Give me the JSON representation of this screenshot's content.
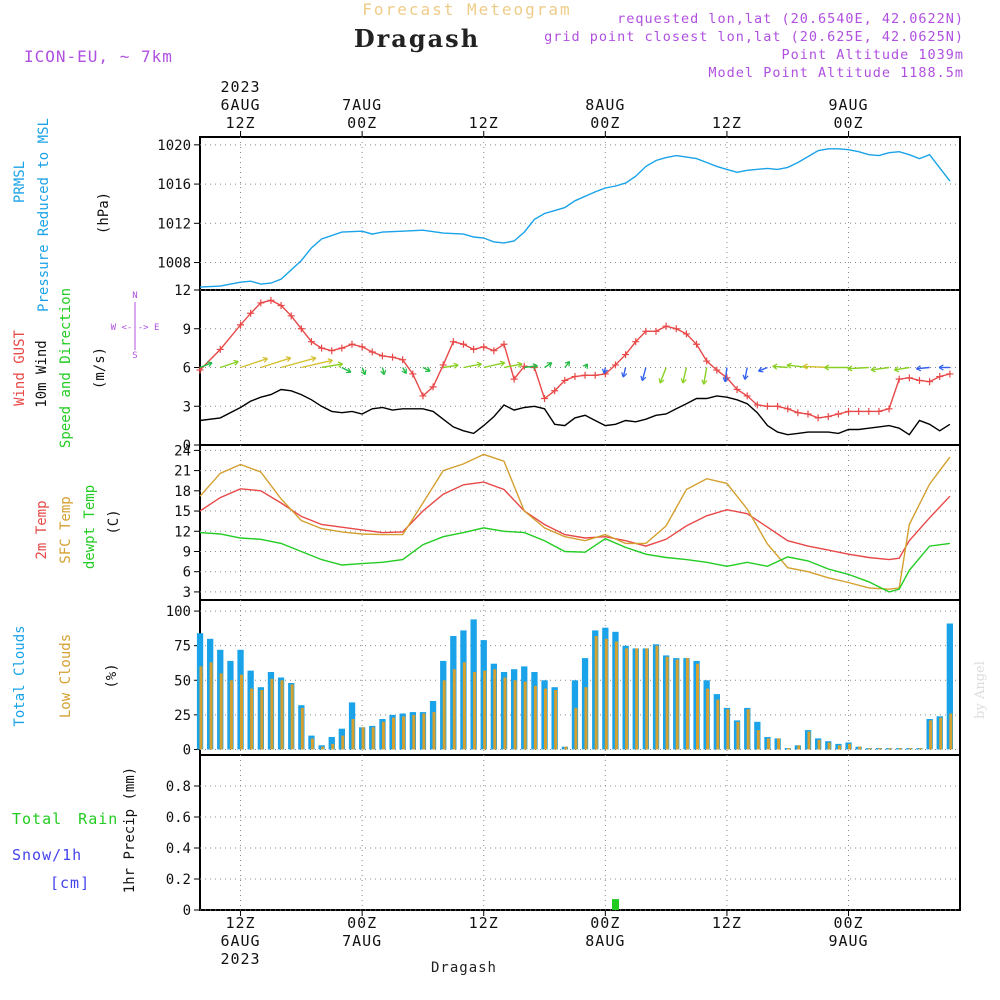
{
  "header": {
    "product": "Forecast Meteogram",
    "location": "Dragash",
    "model": "ICON-EU, ~ 7km",
    "requested": "requested lon,lat (20.6540E, 42.0622N)",
    "grid_point": "grid point closest lon,lat (20.625E, 42.0625N)",
    "point_altitude": "Point Altitude 1039m",
    "model_altitude": "Model Point Altitude 1188.5m",
    "watermark": "by Angel",
    "footer_location": "Dragash"
  },
  "colors": {
    "pressure": "#1aa3e8",
    "gust": "#e84848",
    "wind": "#000000",
    "temp2m": "#e84848",
    "sfc": "#d4a030",
    "dewpt": "#22cc22",
    "total_clouds": "#1aa3e8",
    "low_clouds": "#d4a030",
    "rain": "#22cc22",
    "snow": "#4444ee",
    "altitude_text": "#b050e0",
    "title_text": "#eecc88",
    "grid": "#888888"
  },
  "time_axis": {
    "top_labels": [
      {
        "hour": 12,
        "lines": [
          "2023",
          "6AUG",
          "12Z"
        ]
      },
      {
        "hour": 24,
        "lines": [
          "7AUG",
          "00Z"
        ]
      },
      {
        "hour": 36,
        "lines": [
          "12Z"
        ]
      },
      {
        "hour": 48,
        "lines": [
          "8AUG",
          "00Z"
        ]
      },
      {
        "hour": 60,
        "lines": [
          "12Z"
        ]
      },
      {
        "hour": 72,
        "lines": [
          "9AUG",
          "00Z"
        ]
      }
    ],
    "bottom_labels": [
      {
        "hour": 12,
        "lines": [
          "12Z",
          "6AUG",
          "2023"
        ]
      },
      {
        "hour": 24,
        "lines": [
          "00Z",
          "7AUG"
        ]
      },
      {
        "hour": 36,
        "lines": [
          "12Z"
        ]
      },
      {
        "hour": 48,
        "lines": [
          "00Z",
          "8AUG"
        ]
      },
      {
        "hour": 60,
        "lines": [
          "12Z"
        ]
      },
      {
        "hour": 72,
        "lines": [
          "00Z",
          "9AUG"
        ]
      }
    ]
  },
  "labels": {
    "pressure": [
      "PRMSL",
      "Pressure Reduced to MSL",
      "(hPa)"
    ],
    "wind": [
      "Wind GUST",
      "10m Wind",
      "Speed and Direction",
      "(m/s)"
    ],
    "compass": [
      "N",
      "W <-|-> E",
      "S"
    ],
    "temp": [
      "2m Temp",
      "SFC Temp",
      "dewpt Temp",
      "(C)"
    ],
    "clouds": [
      "Total Clouds",
      "Low Clouds",
      "(%)"
    ],
    "precip": [
      "Total Rain",
      "Snow/1h",
      "[cm]",
      "1hr Precip (mm)"
    ]
  },
  "chart_data": [
    {
      "type": "line",
      "panel": "pressure",
      "ylabel": "(hPa)",
      "ylim": [
        1005.2,
        1020.8
      ],
      "yticks": [
        1008,
        1012,
        1016,
        1020
      ],
      "x": [
        8,
        10,
        12,
        13,
        14,
        15,
        16,
        18,
        19,
        20,
        22,
        24,
        25,
        26,
        28,
        30,
        32,
        34,
        35,
        36,
        37,
        38,
        39,
        40,
        41,
        42,
        43,
        44,
        45,
        47,
        48,
        49,
        50,
        51,
        52,
        53,
        54,
        55,
        57,
        58,
        59,
        60,
        61,
        62,
        64,
        65,
        66,
        67,
        68,
        69,
        70,
        71,
        72,
        73,
        74,
        75,
        76,
        77,
        78,
        79,
        80,
        82
      ],
      "series": [
        {
          "values": [
            1005.5,
            1005.6,
            1006.0,
            1006.1,
            1005.8,
            1005.9,
            1006.3,
            1008.2,
            1009.5,
            1010.4,
            1011.1,
            1011.2,
            1010.9,
            1011.1,
            1011.2,
            1011.3,
            1011.0,
            1010.9,
            1010.6,
            1010.5,
            1010.1,
            1010.0,
            1010.2,
            1011.1,
            1012.4,
            1013.0,
            1013.3,
            1013.6,
            1014.3,
            1015.2,
            1015.6,
            1015.8,
            1016.1,
            1016.8,
            1017.8,
            1018.4,
            1018.7,
            1018.9,
            1018.6,
            1018.2,
            1017.8,
            1017.5,
            1017.2,
            1017.4,
            1017.6,
            1017.5,
            1017.7,
            1018.2,
            1018.8,
            1019.4,
            1019.6,
            1019.6,
            1019.5,
            1019.3,
            1019.0,
            1018.9,
            1019.2,
            1019.3,
            1019.0,
            1018.6,
            1019.0,
            1016.3
          ]
        }
      ]
    },
    {
      "type": "line",
      "panel": "wind",
      "ylabel": "(m/s)",
      "ylim": [
        0,
        12
      ],
      "yticks": [
        0,
        3,
        6,
        9,
        12
      ],
      "x": [
        8,
        10,
        12,
        13,
        14,
        15,
        16,
        17,
        18,
        19,
        20,
        21,
        22,
        23,
        24,
        25,
        26,
        27,
        28,
        29,
        30,
        31,
        32,
        33,
        34,
        35,
        36,
        37,
        38,
        39,
        40,
        41,
        42,
        43,
        44,
        45,
        46,
        47,
        48,
        49,
        50,
        51,
        52,
        53,
        54,
        55,
        56,
        57,
        58,
        59,
        60,
        61,
        62,
        63,
        64,
        65,
        66,
        67,
        68,
        69,
        70,
        71,
        72,
        73,
        74,
        75,
        76,
        77,
        78,
        79,
        80,
        81,
        82
      ],
      "series": [
        {
          "name": "Wind GUST",
          "values": [
            5.8,
            7.4,
            9.3,
            10.2,
            11.0,
            11.2,
            10.8,
            10.0,
            9.0,
            8.0,
            7.5,
            7.3,
            7.5,
            7.8,
            7.6,
            7.2,
            6.9,
            6.8,
            6.6,
            5.5,
            3.8,
            4.5,
            6.2,
            8.0,
            7.8,
            7.4,
            7.6,
            7.3,
            7.8,
            5.1,
            6.1,
            6.0,
            3.6,
            4.2,
            5.0,
            5.3,
            5.4,
            5.4,
            5.5,
            6.2,
            7.0,
            8.0,
            8.8,
            8.8,
            9.2,
            9.0,
            8.6,
            7.8,
            6.5,
            5.8,
            5.2,
            4.3,
            3.8,
            3.1,
            3.0,
            3.0,
            2.8,
            2.5,
            2.4,
            2.1,
            2.2,
            2.4,
            2.6,
            2.6,
            2.6,
            2.6,
            2.8,
            5.1,
            5.2,
            5.0,
            4.9,
            5.3,
            5.5
          ]
        },
        {
          "name": "10m Wind",
          "values": [
            1.9,
            2.1,
            2.9,
            3.4,
            3.7,
            3.9,
            4.3,
            4.2,
            3.9,
            3.5,
            3.0,
            2.6,
            2.5,
            2.6,
            2.4,
            2.8,
            2.9,
            2.7,
            2.8,
            2.8,
            2.8,
            2.6,
            2.0,
            1.4,
            1.1,
            0.9,
            1.5,
            2.2,
            3.1,
            2.7,
            2.9,
            3.0,
            2.8,
            1.6,
            1.5,
            2.1,
            2.3,
            1.9,
            1.5,
            1.6,
            1.9,
            1.8,
            2.0,
            2.3,
            2.4,
            2.8,
            3.2,
            3.6,
            3.6,
            3.8,
            3.7,
            3.5,
            3.2,
            2.5,
            1.5,
            1.0,
            0.8,
            0.9,
            1.0,
            1.0,
            1.0,
            0.9,
            1.2,
            1.2,
            1.3,
            1.4,
            1.5,
            1.3,
            0.8,
            1.9,
            1.6,
            1.1,
            1.6
          ]
        }
      ],
      "wind_vectors": {
        "comment_free": true,
        "x": [
          8,
          10,
          12,
          14,
          16,
          18,
          20,
          22,
          24,
          26,
          28,
          30,
          32,
          34,
          36,
          38,
          40,
          42,
          44,
          46,
          48,
          50,
          52,
          54,
          56,
          58,
          60,
          62,
          64,
          66,
          68,
          70,
          72,
          74,
          76,
          78,
          80,
          82
        ],
        "u": [
          2.0,
          3.0,
          4.5,
          5.0,
          5.8,
          5.2,
          3.5,
          1.5,
          0.5,
          0.3,
          0.6,
          1.2,
          2.5,
          3.0,
          3.5,
          3.0,
          2.2,
          1.2,
          0.8,
          0.4,
          -0.2,
          -0.4,
          -0.6,
          -1.0,
          -0.6,
          -0.5,
          -0.3,
          -0.4,
          -1.5,
          -2.5,
          -3.5,
          -4.2,
          -4.0,
          -3.5,
          -3.0,
          -2.5,
          -2.2,
          -1.8
        ],
        "v": [
          0.8,
          1.0,
          1.5,
          1.6,
          1.6,
          1.2,
          0.6,
          -0.8,
          -1.2,
          -1.2,
          -1.0,
          -0.6,
          0.4,
          0.6,
          0.8,
          0.6,
          0.3,
          0.8,
          1.0,
          0.6,
          -1.0,
          -1.6,
          -2.2,
          -2.6,
          -2.6,
          -2.8,
          -2.4,
          -2.0,
          -0.6,
          0.2,
          0.4,
          0.2,
          0.0,
          -0.2,
          -0.4,
          -0.4,
          -0.2,
          0.0
        ]
      }
    },
    {
      "type": "line",
      "panel": "temperature",
      "ylabel": "(C)",
      "ylim": [
        1.8,
        24.8
      ],
      "yticks": [
        3,
        6,
        9,
        12,
        15,
        18,
        21,
        24
      ],
      "x": [
        8,
        10,
        12,
        14,
        16,
        18,
        20,
        22,
        24,
        26,
        28,
        30,
        32,
        34,
        36,
        38,
        40,
        42,
        44,
        46,
        48,
        50,
        52,
        54,
        56,
        58,
        60,
        62,
        64,
        66,
        68,
        70,
        72,
        74,
        76,
        77,
        78,
        80,
        82
      ],
      "series": [
        {
          "name": "2m Temp",
          "values": [
            15.0,
            17.0,
            18.3,
            18.0,
            16.2,
            14.2,
            13.0,
            12.6,
            12.2,
            11.8,
            11.9,
            15.0,
            17.5,
            18.9,
            19.3,
            18.2,
            15.0,
            13.0,
            11.5,
            11.0,
            11.2,
            10.6,
            9.8,
            10.8,
            12.8,
            14.3,
            15.2,
            14.6,
            12.6,
            10.6,
            9.8,
            9.2,
            8.6,
            8.1,
            7.8,
            8.0,
            10.6,
            14.0,
            17.2
          ]
        },
        {
          "name": "SFC Temp",
          "values": [
            17.2,
            20.6,
            21.9,
            20.8,
            16.8,
            13.6,
            12.4,
            11.9,
            11.6,
            11.5,
            11.5,
            16.2,
            21.0,
            22.0,
            23.4,
            22.4,
            15.0,
            12.5,
            11.2,
            10.6,
            11.5,
            10.2,
            10.2,
            12.8,
            18.2,
            19.8,
            19.1,
            15.3,
            10.1,
            6.6,
            6.0,
            5.1,
            4.4,
            3.6,
            3.4,
            3.6,
            13.0,
            19.0,
            23.0
          ]
        },
        {
          "name": "dewpt Temp",
          "values": [
            11.8,
            11.6,
            11.0,
            10.8,
            10.2,
            9.0,
            7.8,
            7.0,
            7.2,
            7.4,
            7.8,
            10.0,
            11.2,
            11.8,
            12.5,
            12.0,
            11.8,
            10.6,
            9.0,
            8.9,
            10.9,
            9.6,
            8.6,
            8.1,
            7.8,
            7.4,
            6.8,
            7.4,
            6.8,
            8.2,
            7.6,
            6.4,
            5.6,
            4.5,
            3.0,
            3.4,
            6.2,
            9.8,
            10.2
          ]
        }
      ]
    },
    {
      "type": "bar",
      "panel": "clouds",
      "ylabel": "(%)",
      "ylim": [
        -4,
        108
      ],
      "yticks": [
        0,
        25,
        50,
        75,
        100
      ],
      "x": [
        8,
        9,
        10,
        11,
        12,
        13,
        14,
        15,
        16,
        17,
        18,
        19,
        20,
        21,
        22,
        23,
        24,
        25,
        26,
        27,
        28,
        29,
        30,
        31,
        32,
        33,
        34,
        35,
        36,
        37,
        38,
        39,
        40,
        41,
        42,
        43,
        44,
        45,
        46,
        47,
        48,
        49,
        50,
        51,
        52,
        53,
        54,
        55,
        56,
        57,
        58,
        59,
        60,
        61,
        62,
        63,
        64,
        65,
        66,
        67,
        68,
        69,
        70,
        71,
        72,
        73,
        74,
        75,
        76,
        77,
        78,
        79,
        80,
        81,
        82
      ],
      "series": [
        {
          "name": "Total Clouds",
          "values": [
            84,
            80,
            72,
            64,
            72,
            57,
            45,
            56,
            52,
            48,
            32,
            10,
            3,
            9,
            15,
            34,
            16,
            17,
            22,
            25,
            26,
            27,
            27,
            35,
            64,
            82,
            86,
            94,
            79,
            62,
            56,
            58,
            60,
            56,
            50,
            45,
            2,
            50,
            66,
            86,
            88,
            85,
            75,
            73,
            73,
            76,
            68,
            66,
            66,
            64,
            50,
            40,
            30,
            21,
            30,
            20,
            9,
            8,
            1,
            3,
            14,
            8,
            6,
            4,
            5,
            2,
            1,
            1,
            1,
            1,
            1,
            1,
            22,
            24,
            91
          ]
        },
        {
          "name": "Low Clouds",
          "values": [
            60,
            63,
            55,
            50,
            54,
            44,
            43,
            51,
            50,
            47,
            30,
            8,
            2,
            4,
            10,
            22,
            16,
            16,
            20,
            23,
            24,
            25,
            26,
            27,
            50,
            58,
            63,
            56,
            57,
            58,
            52,
            50,
            49,
            46,
            44,
            43,
            2,
            30,
            45,
            82,
            80,
            78,
            73,
            73,
            73,
            75,
            67,
            65,
            66,
            62,
            44,
            36,
            29,
            20,
            29,
            14,
            8,
            8,
            1,
            3,
            13,
            7,
            5,
            3,
            4,
            2,
            1,
            1,
            1,
            1,
            1,
            1,
            21,
            23,
            26
          ]
        }
      ]
    },
    {
      "type": "bar",
      "panel": "precipitation",
      "ylabel": "1hr Precip (mm)",
      "ylim": [
        0,
        1.0
      ],
      "yticks": [
        0,
        0.2,
        0.4,
        0.6,
        0.8
      ],
      "x": [
        49
      ],
      "series": [
        {
          "name": "Total Rain",
          "values": [
            0.07
          ]
        },
        {
          "name": "Snow/1h",
          "values": [
            0
          ]
        }
      ]
    }
  ]
}
